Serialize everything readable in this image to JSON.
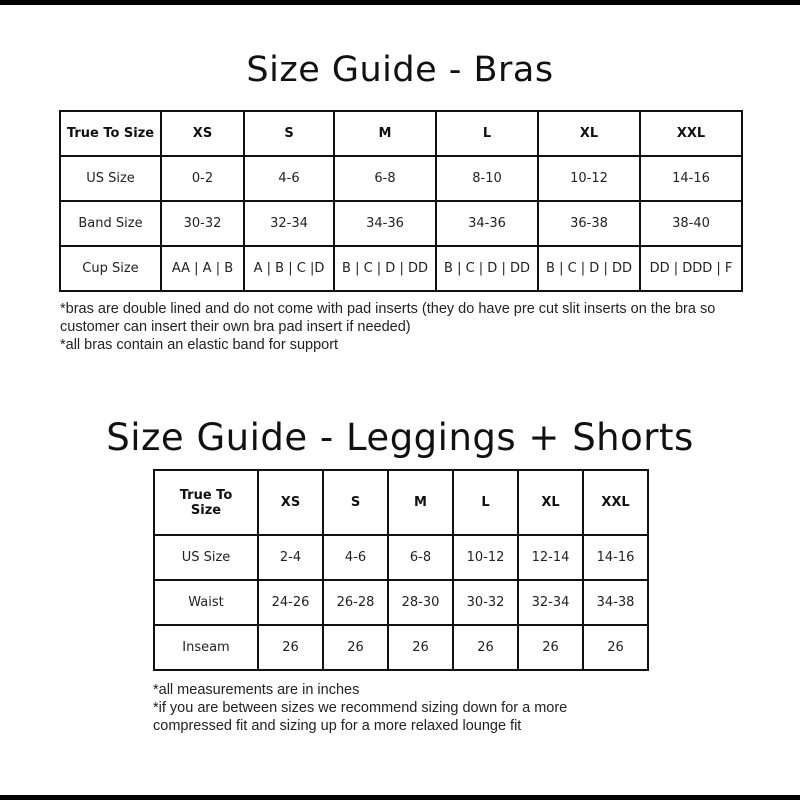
{
  "bras": {
    "title": "Size Guide - Bras",
    "header": [
      "True To Size",
      "XS",
      "S",
      "M",
      "L",
      "XL",
      "XXL"
    ],
    "rows": [
      [
        "US Size",
        "0-2",
        "4-6",
        "6-8",
        "8-10",
        "10-12",
        "14-16"
      ],
      [
        "Band Size",
        "30-32",
        "32-34",
        "34-36",
        "34-36",
        "36-38",
        "38-40"
      ],
      [
        "Cup Size",
        "AA | A | B",
        "A | B | C |D",
        "B | C | D | DD",
        "B | C | D | DD",
        "B | C | D | DD",
        "DD | DDD | F"
      ]
    ],
    "notes": [
      "*bras are double lined and do not come with pad inserts (they do have pre cut slit inserts on the bra so customer can insert their own bra pad insert if needed)",
      "*all bras contain an elastic band for support"
    ]
  },
  "leggings": {
    "title": "Size Guide - Leggings + Shorts",
    "header": [
      "True To Size",
      "XS",
      "S",
      "M",
      "L",
      "XL",
      "XXL"
    ],
    "rows": [
      [
        "US Size",
        "2-4",
        "4-6",
        "6-8",
        "10-12",
        "12-14",
        "14-16"
      ],
      [
        "Waist",
        "24-26",
        "26-28",
        "28-30",
        "30-32",
        "32-34",
        "34-38"
      ],
      [
        "Inseam",
        "26",
        "26",
        "26",
        "26",
        "26",
        "26"
      ]
    ],
    "notes": [
      "*all measurements are in inches",
      "*if you are between sizes we recommend sizing down for a more compressed fit and sizing up for a more relaxed lounge fit"
    ]
  }
}
